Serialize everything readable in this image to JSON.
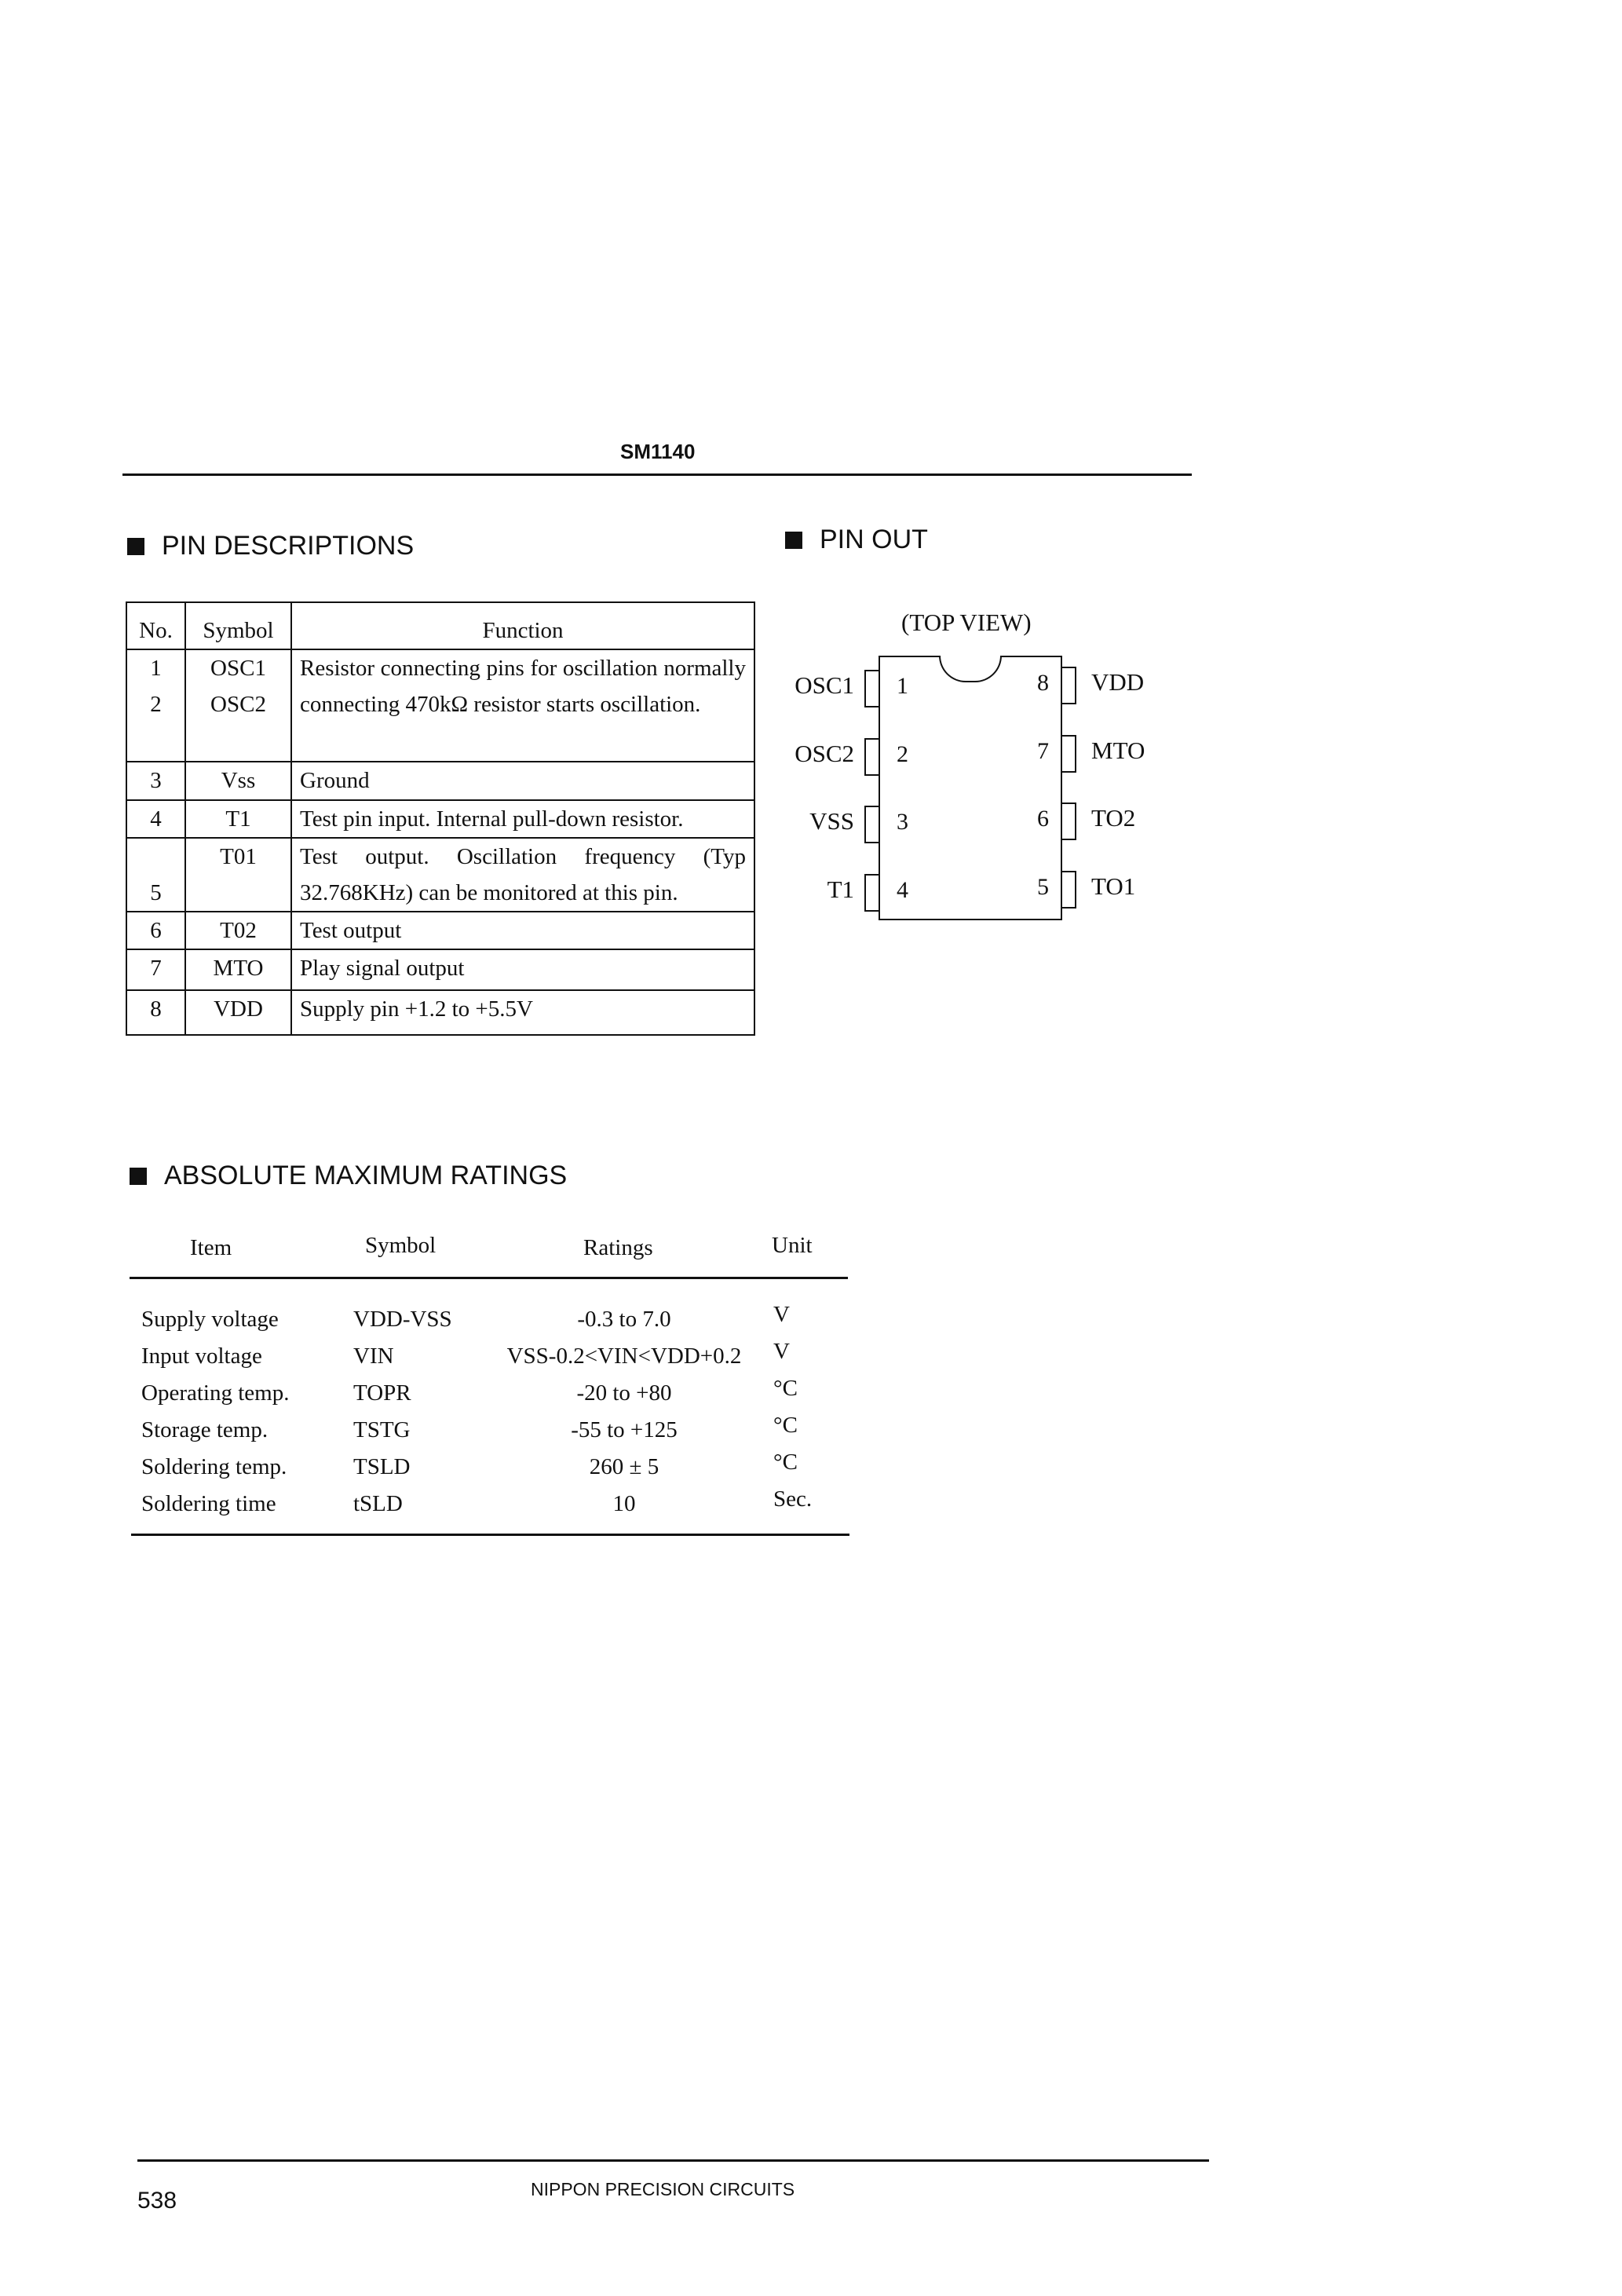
{
  "header": {
    "part_number": "SM1140"
  },
  "pin_descriptions": {
    "heading": "PIN DESCRIPTIONS",
    "columns": [
      "No.",
      "Symbol",
      "Function"
    ],
    "rows": [
      {
        "no": [
          "1",
          "2"
        ],
        "symbol": [
          "OSC1",
          "OSC2"
        ],
        "function": "Resistor connecting pins for oscillation normally connecting 470kΩ resistor starts oscillation."
      },
      {
        "no": [
          "3"
        ],
        "symbol": [
          "Vss"
        ],
        "function": "Ground"
      },
      {
        "no": [
          "4"
        ],
        "symbol": [
          "T1"
        ],
        "function": "Test pin input.  Internal pull-down resistor."
      },
      {
        "no": [
          "5"
        ],
        "symbol": [
          "T01"
        ],
        "function": "Test output. Oscillation frequency (Typ 32.768KHz) can be monitored at this pin."
      },
      {
        "no": [
          "6"
        ],
        "symbol": [
          "T02"
        ],
        "function": "Test output"
      },
      {
        "no": [
          "7"
        ],
        "symbol": [
          "MTO"
        ],
        "function": "Play signal output"
      },
      {
        "no": [
          "8"
        ],
        "symbol": [
          "VDD"
        ],
        "function": "Supply pin +1.2 to  +5.5V"
      }
    ]
  },
  "pin_out": {
    "heading": "PIN OUT",
    "view_label": "(TOP VIEW)",
    "left_pins": [
      {
        "num": "1",
        "name": "OSC1"
      },
      {
        "num": "2",
        "name": "OSC2"
      },
      {
        "num": "3",
        "name": "VSS"
      },
      {
        "num": "4",
        "name": "T1"
      }
    ],
    "right_pins": [
      {
        "num": "8",
        "name": "VDD"
      },
      {
        "num": "7",
        "name": "MTO"
      },
      {
        "num": "6",
        "name": "TO2"
      },
      {
        "num": "5",
        "name": "TO1"
      }
    ]
  },
  "abs_max": {
    "heading": "ABSOLUTE MAXIMUM RATINGS",
    "columns": [
      "Item",
      "Symbol",
      "Ratings",
      "Unit"
    ],
    "rows": [
      {
        "item": "Supply voltage",
        "symbol": "VDD-VSS",
        "rating": "-0.3 to  7.0",
        "unit": "V"
      },
      {
        "item": "Input voltage",
        "symbol": "VIN",
        "rating": "VSS-0.2<VIN<VDD+0.2",
        "unit": "V"
      },
      {
        "item": "Operating temp.",
        "symbol": "TOPR",
        "rating": "-20 to +80",
        "unit": "°C"
      },
      {
        "item": "Storage temp.",
        "symbol": "TSTG",
        "rating": "-55 to +125",
        "unit": "°C"
      },
      {
        "item": "Soldering temp.",
        "symbol": "TSLD",
        "rating": "260 ± 5",
        "unit": "°C"
      },
      {
        "item": "Soldering time",
        "symbol": "tSLD",
        "rating": "10",
        "unit": "Sec."
      }
    ]
  },
  "footer": {
    "page_number": "538",
    "company": "NIPPON PRECISION CIRCUITS"
  }
}
